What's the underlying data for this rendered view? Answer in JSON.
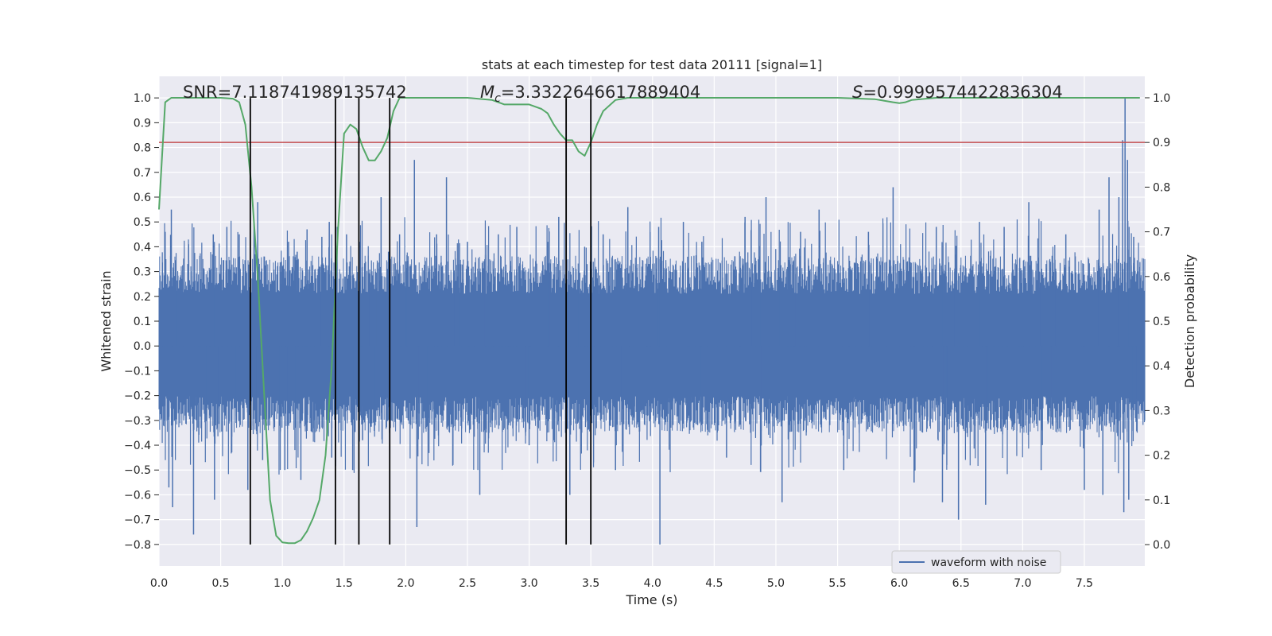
{
  "chart_data": {
    "type": "line",
    "title": "stats at each timestep for test data 20111 [signal=1]",
    "xlabel": "Time (s)",
    "ylabel": "Whitened strain",
    "y2label": "Detection probability",
    "xlim": [
      0.0,
      7.99
    ],
    "ylim": [
      -0.887,
      1.087
    ],
    "y2lim": [
      -0.048,
      1.048
    ],
    "x_ticks": [
      "0.0",
      "0.5",
      "1.0",
      "1.5",
      "2.0",
      "2.5",
      "3.0",
      "3.5",
      "4.0",
      "4.5",
      "5.0",
      "5.5",
      "6.0",
      "6.5",
      "7.0",
      "7.5"
    ],
    "y_ticks": [
      "−0.8",
      "−0.7",
      "−0.6",
      "−0.5",
      "−0.4",
      "−0.3",
      "−0.2",
      "−0.1",
      "0.0",
      "0.1",
      "0.2",
      "0.3",
      "0.4",
      "0.5",
      "0.6",
      "0.7",
      "0.8",
      "0.9",
      "1.0"
    ],
    "y2_ticks": [
      "0.0",
      "0.1",
      "0.2",
      "0.3",
      "0.4",
      "0.5",
      "0.6",
      "0.7",
      "0.8",
      "0.9",
      "1.0"
    ],
    "grid": true,
    "legend_position": "bottom-right",
    "annotations": {
      "snr_text": "SNR=7.118741989135742",
      "mc_symbol": "M",
      "mc_subscript": "c",
      "mc_value": "=3.3322646617889404",
      "s_symbol": "S",
      "s_value": "=0.9999574422836304"
    },
    "threshold": {
      "probability": 0.9,
      "color": "#c44e52"
    },
    "vertical_markers": [
      0.74,
      1.43,
      1.62,
      1.87,
      3.3,
      3.5
    ],
    "colors": {
      "strain": "#4c72b0",
      "probability": "#55a868",
      "markers": "#000000",
      "background": "#eaeaf2",
      "grid": "#ffffff"
    },
    "series": [
      {
        "name": "waveform with noise",
        "type": "noise_envelope",
        "envelope_upper": 0.28,
        "envelope_lower": -0.27,
        "peak_spikes": [
          [
            0.05,
            0.46
          ],
          [
            0.08,
            -0.57
          ],
          [
            0.1,
            0.55
          ],
          [
            0.11,
            -0.65
          ],
          [
            0.24,
            0.41
          ],
          [
            0.28,
            -0.76
          ],
          [
            0.44,
            0.45
          ],
          [
            0.45,
            -0.62
          ],
          [
            0.55,
            0.48
          ],
          [
            0.65,
            0.45
          ],
          [
            0.72,
            -0.58
          ],
          [
            0.78,
            0.37
          ],
          [
            0.8,
            0.58
          ],
          [
            0.84,
            -0.46
          ],
          [
            0.9,
            -0.29
          ],
          [
            1.02,
            -0.5
          ],
          [
            1.05,
            0.42
          ],
          [
            1.12,
            0.38
          ],
          [
            1.15,
            -0.54
          ],
          [
            1.2,
            0.47
          ],
          [
            1.32,
            0.44
          ],
          [
            1.36,
            -0.38
          ],
          [
            1.38,
            0.5
          ],
          [
            1.4,
            -0.45
          ],
          [
            1.52,
            0.45
          ],
          [
            1.57,
            -0.5
          ],
          [
            1.63,
            0.42
          ],
          [
            1.65,
            -0.38
          ],
          [
            1.8,
            0.6
          ],
          [
            1.86,
            0.38
          ],
          [
            1.95,
            0.45
          ],
          [
            2.02,
            -0.3
          ],
          [
            2.07,
            0.75
          ],
          [
            2.09,
            -0.73
          ],
          [
            2.25,
            0.45
          ],
          [
            2.33,
            0.68
          ],
          [
            2.5,
            0.42
          ],
          [
            2.6,
            -0.6
          ],
          [
            2.75,
            0.45
          ],
          [
            2.9,
            0.48
          ],
          [
            3.0,
            -0.4
          ],
          [
            3.15,
            0.42
          ],
          [
            3.2,
            -0.38
          ],
          [
            3.24,
            0.52
          ],
          [
            3.33,
            -0.6
          ],
          [
            3.45,
            0.4
          ],
          [
            3.6,
            0.45
          ],
          [
            3.7,
            -0.5
          ],
          [
            3.8,
            0.56
          ],
          [
            4.05,
            0.48
          ],
          [
            4.06,
            -0.8
          ],
          [
            4.25,
            0.5
          ],
          [
            4.4,
            0.42
          ],
          [
            4.6,
            -0.45
          ],
          [
            4.75,
            0.52
          ],
          [
            4.92,
            0.6
          ],
          [
            5.05,
            -0.63
          ],
          [
            5.2,
            0.46
          ],
          [
            5.35,
            0.55
          ],
          [
            5.55,
            -0.5
          ],
          [
            5.75,
            0.46
          ],
          [
            5.95,
            0.64
          ],
          [
            6.12,
            -0.55
          ],
          [
            6.3,
            0.48
          ],
          [
            6.35,
            -0.63
          ],
          [
            6.48,
            -0.7
          ],
          [
            6.65,
            0.5
          ],
          [
            6.7,
            -0.64
          ],
          [
            6.85,
            0.48
          ],
          [
            7.05,
            0.58
          ],
          [
            7.15,
            -0.5
          ],
          [
            7.35,
            0.45
          ],
          [
            7.5,
            -0.58
          ],
          [
            7.62,
            0.55
          ],
          [
            7.65,
            -0.6
          ],
          [
            7.7,
            0.68
          ],
          [
            7.78,
            0.6
          ],
          [
            7.81,
            0.83
          ],
          [
            7.82,
            -0.67
          ],
          [
            7.83,
            1.0
          ],
          [
            7.85,
            0.75
          ],
          [
            7.86,
            -0.62
          ],
          [
            7.9,
            0.44
          ]
        ]
      },
      {
        "type": "probability",
        "axis": "right",
        "x": [
          0.0,
          0.05,
          0.1,
          0.2,
          0.3,
          0.4,
          0.5,
          0.6,
          0.65,
          0.7,
          0.75,
          0.8,
          0.85,
          0.9,
          0.95,
          1.0,
          1.05,
          1.1,
          1.15,
          1.2,
          1.25,
          1.3,
          1.35,
          1.4,
          1.45,
          1.5,
          1.55,
          1.6,
          1.65,
          1.7,
          1.75,
          1.8,
          1.85,
          1.9,
          1.95,
          2.0,
          2.1,
          2.3,
          2.5,
          2.7,
          2.8,
          2.9,
          3.0,
          3.05,
          3.1,
          3.15,
          3.2,
          3.25,
          3.3,
          3.35,
          3.4,
          3.45,
          3.5,
          3.55,
          3.6,
          3.7,
          3.8,
          4.0,
          4.5,
          5.0,
          5.5,
          5.8,
          5.95,
          6.0,
          6.05,
          6.1,
          6.3,
          6.6,
          7.0,
          7.5,
          7.95
        ],
        "y": [
          0.75,
          0.99,
          1.0,
          1.0,
          1.0,
          1.0,
          1.0,
          0.998,
          0.99,
          0.94,
          0.8,
          0.6,
          0.35,
          0.1,
          0.02,
          0.005,
          0.003,
          0.003,
          0.01,
          0.03,
          0.06,
          0.1,
          0.2,
          0.4,
          0.7,
          0.92,
          0.94,
          0.93,
          0.89,
          0.86,
          0.86,
          0.88,
          0.91,
          0.97,
          1.0,
          1.0,
          1.0,
          1.0,
          1.0,
          0.995,
          0.985,
          0.985,
          0.985,
          0.98,
          0.975,
          0.965,
          0.94,
          0.92,
          0.905,
          0.905,
          0.88,
          0.87,
          0.9,
          0.94,
          0.97,
          0.995,
          1.0,
          1.0,
          1.0,
          1.0,
          1.0,
          0.997,
          0.99,
          0.988,
          0.99,
          0.995,
          1.0,
          1.0,
          1.0,
          1.0,
          1.0
        ]
      }
    ]
  }
}
